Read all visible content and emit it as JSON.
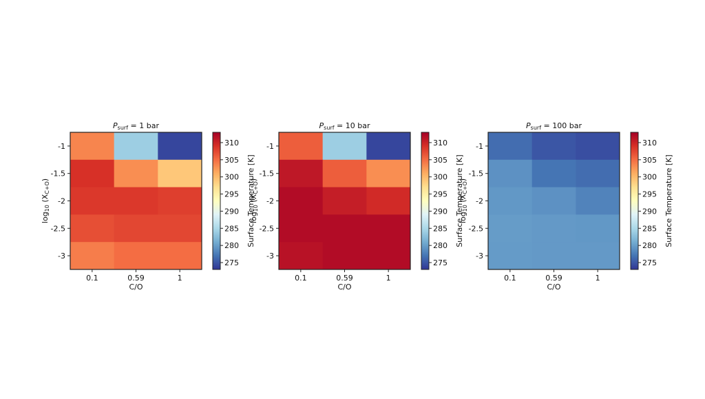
{
  "colorscale": {
    "stops": [
      "#313695",
      "#4575b4",
      "#74add1",
      "#abd9e9",
      "#e0f3f8",
      "#ffffbf",
      "#fee090",
      "#fdae61",
      "#f46d43",
      "#d73027",
      "#a50026"
    ],
    "vmin": 273,
    "vmax": 313,
    "ticks": [
      "275",
      "280",
      "285",
      "290",
      "295",
      "300",
      "305",
      "310"
    ],
    "label": "Surface Temperature [K]"
  },
  "chart_data": [
    {
      "type": "heatmap",
      "title_prefix": "P",
      "title_sub": "surf",
      "title_suffix": " = 1 bar",
      "xlabel": "C/O",
      "ylabel_prefix": "log",
      "ylabel_sub": "10",
      "ylabel_mid": " (X",
      "ylabel_sub2": "C+O",
      "ylabel_suffix": ")",
      "x_categories": [
        "0.1",
        "0.59",
        "1"
      ],
      "y_categories": [
        "-1",
        "-1.5",
        "-2",
        "-2.5",
        "-3"
      ],
      "values": [
        [
          303.5,
          284,
          274
        ],
        [
          309,
          303,
          299
        ],
        [
          308.5,
          308.5,
          308
        ],
        [
          307,
          307.5,
          307.5
        ],
        [
          304,
          305,
          305
        ]
      ]
    },
    {
      "type": "heatmap",
      "title_prefix": "P",
      "title_sub": "surf",
      "title_suffix": " = 10 bar",
      "xlabel": "C/O",
      "ylabel_prefix": "log",
      "ylabel_sub": "10",
      "ylabel_mid": " (X",
      "ylabel_sub2": "C+O",
      "ylabel_suffix": ")",
      "x_categories": [
        "0.1",
        "0.59",
        "1"
      ],
      "y_categories": [
        "-1",
        "-1.5",
        "-2",
        "-2.5",
        "-3"
      ],
      "values": [
        [
          306,
          284,
          274
        ],
        [
          311,
          306,
          303
        ],
        [
          312,
          310.5,
          309.5
        ],
        [
          312,
          312,
          312
        ],
        [
          311.5,
          312,
          312
        ]
      ]
    },
    {
      "type": "heatmap",
      "title_prefix": "P",
      "title_sub": "surf",
      "title_suffix": " = 100 bar",
      "xlabel": "C/O",
      "ylabel_prefix": "log",
      "ylabel_sub": "10",
      "ylabel_mid": " (X",
      "ylabel_sub2": "C+O",
      "ylabel_suffix": ")",
      "x_categories": [
        "0.1",
        "0.59",
        "1"
      ],
      "y_categories": [
        "-1",
        "-1.5",
        "-2",
        "-2.5",
        "-3"
      ],
      "values": [
        [
          276.5,
          275,
          274.5
        ],
        [
          279,
          277,
          276.5
        ],
        [
          279.5,
          279,
          278
        ],
        [
          279.8,
          279.6,
          279.5
        ],
        [
          279.7,
          279.6,
          279.6
        ]
      ]
    }
  ]
}
